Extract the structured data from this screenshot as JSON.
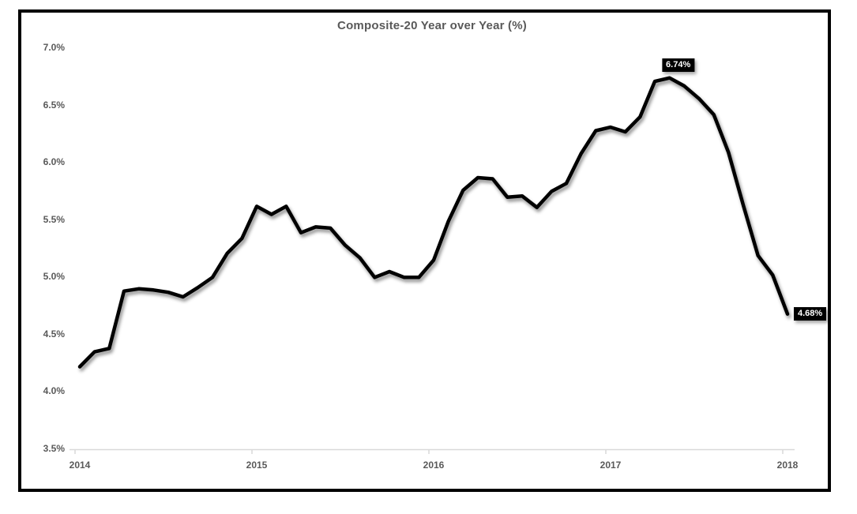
{
  "chart_data": {
    "type": "line",
    "title": "Composite-20 Year over Year (%)",
    "x_tick_labels": [
      "2014",
      "2015",
      "2016",
      "2017",
      "2018"
    ],
    "x_tick_point_indices": [
      0,
      12,
      24,
      36,
      48
    ],
    "y_tick_labels": [
      "3.5%",
      "4.0%",
      "4.5%",
      "5.0%",
      "5.5%",
      "6.0%",
      "6.5%",
      "7.0%"
    ],
    "y_ticks": [
      3.5,
      4.0,
      4.5,
      5.0,
      5.5,
      6.0,
      6.5,
      7.0
    ],
    "ylim": [
      3.5,
      7.0
    ],
    "grid": false,
    "legend": false,
    "values": [
      4.22,
      4.35,
      4.38,
      4.88,
      4.9,
      4.89,
      4.87,
      4.83,
      4.91,
      5.0,
      5.21,
      5.34,
      5.62,
      5.55,
      5.62,
      5.39,
      5.44,
      5.43,
      5.28,
      5.17,
      5.0,
      5.05,
      5.0,
      5.0,
      5.15,
      5.49,
      5.76,
      5.87,
      5.86,
      5.7,
      5.71,
      5.61,
      5.75,
      5.82,
      6.08,
      6.28,
      6.31,
      6.27,
      6.4,
      6.71,
      6.74,
      6.67,
      6.56,
      6.42,
      6.09,
      5.63,
      5.19,
      5.02,
      4.68
    ],
    "annotations": {
      "peak": {
        "label": "6.74%",
        "point_index": 40,
        "placement": "above"
      },
      "end": {
        "label": "4.68%",
        "point_index": 48,
        "placement": "right"
      }
    }
  },
  "colors": {
    "text": "#595959",
    "axis": "#d9d9d9",
    "line": "#000000",
    "label_bg": "#000000",
    "label_text": "#ffffff",
    "frame": "#000000",
    "background": "#ffffff"
  }
}
